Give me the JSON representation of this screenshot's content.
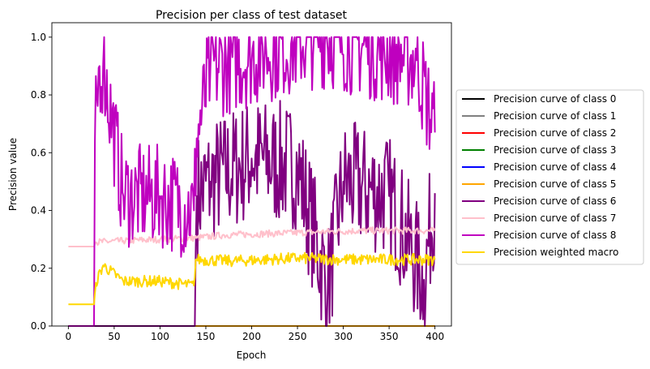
{
  "chart_data": {
    "type": "line",
    "title": "Precision per class of test dataset",
    "xlabel": "Epoch",
    "ylabel": "Precision value",
    "xlim": [
      -18,
      418
    ],
    "ylim": [
      0.0,
      1.05
    ],
    "x_ticks": [
      0,
      50,
      100,
      150,
      200,
      250,
      300,
      350,
      400
    ],
    "y_ticks": [
      0.0,
      0.2,
      0.4,
      0.6,
      0.8,
      1.0
    ],
    "grid": false,
    "legend_position": "outside right",
    "x_range": [
      0,
      400
    ],
    "series": [
      {
        "name": "Precision curve of class 0",
        "color": "#000000",
        "breakpoints": [
          [
            0,
            0.0
          ],
          [
            400,
            0.0
          ]
        ]
      },
      {
        "name": "Precision curve of class 1",
        "color": "#808080",
        "breakpoints": [
          [
            0,
            0.0
          ],
          [
            400,
            0.0
          ]
        ]
      },
      {
        "name": "Precision curve of class 2",
        "color": "#ff0000",
        "breakpoints": [
          [
            0,
            0.0
          ],
          [
            400,
            0.0
          ]
        ]
      },
      {
        "name": "Precision curve of class 3",
        "color": "#008000",
        "breakpoints": [
          [
            0,
            0.0
          ],
          [
            400,
            0.0
          ]
        ]
      },
      {
        "name": "Precision curve of class 4",
        "color": "#0000ff",
        "breakpoints": [
          [
            0,
            0.0
          ],
          [
            400,
            0.0
          ]
        ]
      },
      {
        "name": "Precision curve of class 5",
        "color": "#ffa500",
        "breakpoints": [
          [
            0,
            0.0
          ],
          [
            400,
            0.0
          ]
        ]
      },
      {
        "name": "Precision curve of class 6",
        "color": "#800080",
        "breakpoints": [
          [
            0,
            0.0
          ],
          [
            138,
            0.0
          ],
          [
            139,
            0.27
          ],
          [
            140,
            0.45
          ],
          [
            155,
            0.5
          ],
          [
            200,
            0.58
          ],
          [
            250,
            0.55
          ],
          [
            283,
            0.13
          ],
          [
            300,
            0.5
          ],
          [
            350,
            0.45
          ],
          [
            388,
            0.16
          ],
          [
            400,
            0.46
          ]
        ]
      },
      {
        "name": "Precision curve of class 7",
        "color": "#ffc0cb",
        "breakpoints": [
          [
            0,
            0.275
          ],
          [
            28,
            0.275
          ],
          [
            30,
            0.29
          ],
          [
            60,
            0.295
          ],
          [
            100,
            0.3
          ],
          [
            140,
            0.305
          ],
          [
            170,
            0.315
          ],
          [
            220,
            0.32
          ],
          [
            270,
            0.325
          ],
          [
            320,
            0.33
          ],
          [
            400,
            0.33
          ]
        ]
      },
      {
        "name": "Precision curve of class 8",
        "color": "#bf00bf",
        "breakpoints": [
          [
            0,
            0.0
          ],
          [
            28,
            0.0
          ],
          [
            29,
            0.64
          ],
          [
            34,
            0.9
          ],
          [
            38,
            0.91
          ],
          [
            60,
            0.45
          ],
          [
            100,
            0.45
          ],
          [
            137,
            0.4
          ],
          [
            140,
            0.65
          ],
          [
            155,
            0.89
          ],
          [
            216,
            0.95
          ],
          [
            271,
            1.0
          ],
          [
            282,
            1.0
          ],
          [
            380,
            0.92
          ],
          [
            400,
            0.67
          ]
        ]
      },
      {
        "name": "Precision weighted macro",
        "color": "#ffd700",
        "breakpoints": [
          [
            0,
            0.075
          ],
          [
            28,
            0.075
          ],
          [
            30,
            0.15
          ],
          [
            38,
            0.21
          ],
          [
            60,
            0.155
          ],
          [
            100,
            0.155
          ],
          [
            137,
            0.14
          ],
          [
            139,
            0.23
          ],
          [
            180,
            0.225
          ],
          [
            250,
            0.235
          ],
          [
            300,
            0.23
          ],
          [
            400,
            0.23
          ]
        ]
      }
    ]
  }
}
